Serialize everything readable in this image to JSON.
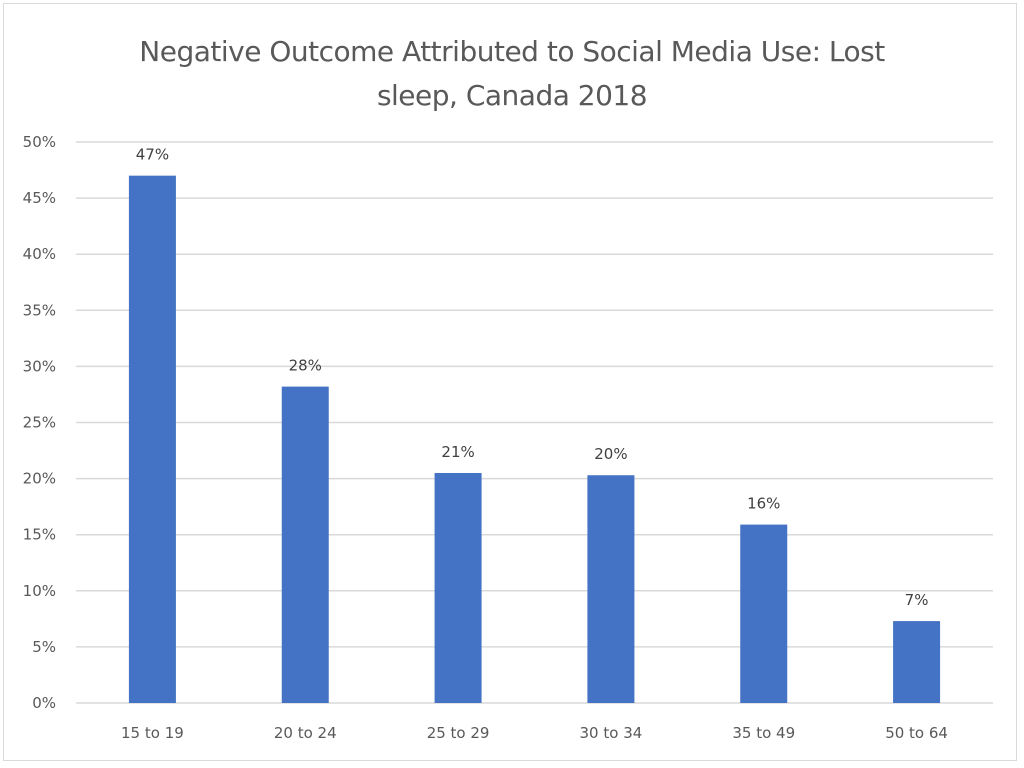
{
  "chart_data": {
    "type": "bar",
    "title_lines": [
      "Negative Outcome Attributed to Social Media Use: Lost",
      "sleep, Canada 2018"
    ],
    "title": "Negative Outcome Attributed to Social Media Use: Lost sleep, Canada 2018",
    "xlabel": "",
    "ylabel": "",
    "categories": [
      "15 to 19",
      "20 to 24",
      "25 to 29",
      "30 to 34",
      "35 to 49",
      "50 to 64"
    ],
    "values": [
      47.0,
      28.2,
      20.5,
      20.3,
      15.9,
      7.3
    ],
    "data_labels": [
      "47%",
      "28%",
      "21%",
      "20%",
      "16%",
      "7%"
    ],
    "ylim": [
      0,
      50
    ],
    "yticks": [
      0,
      5,
      10,
      15,
      20,
      25,
      30,
      35,
      40,
      45,
      50
    ],
    "ytick_labels": [
      "0%",
      "5%",
      "10%",
      "15%",
      "20%",
      "25%",
      "30%",
      "35%",
      "40%",
      "45%",
      "50%"
    ],
    "grid": true,
    "legend": "none",
    "bar_color": "#4472c4",
    "grid_color": "#d9d9d9"
  }
}
